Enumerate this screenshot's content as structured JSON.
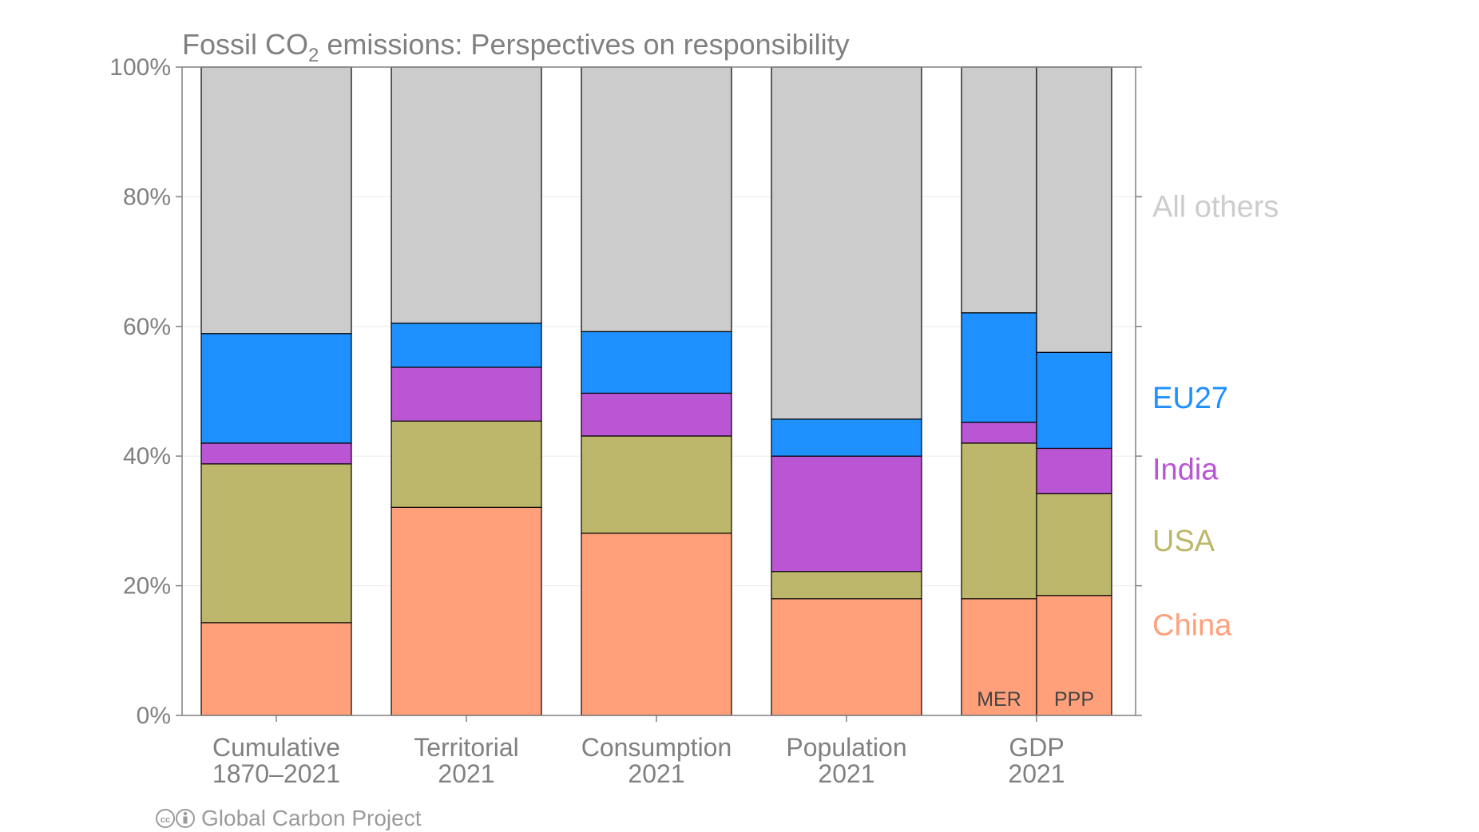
{
  "chart_data": {
    "type": "bar",
    "stacked": true,
    "title_main": "Fossil CO",
    "title_sub": "2",
    "title_rest": " emissions: Perspectives on responsibility",
    "ylim": [
      0,
      100
    ],
    "yticks": [
      0,
      20,
      40,
      60,
      80,
      100
    ],
    "ytick_labels": [
      "0%",
      "20%",
      "40%",
      "60%",
      "80%",
      "100%"
    ],
    "grid": true,
    "legend_placement": "right",
    "series": [
      {
        "name": "China",
        "color": "#FFA07A"
      },
      {
        "name": "USA",
        "color": "#BDB76B"
      },
      {
        "name": "India",
        "color": "#BA55D3"
      },
      {
        "name": "EU27",
        "color": "#1E90FF"
      },
      {
        "name": "All others",
        "color": "#CCCCCC"
      }
    ],
    "groups": [
      {
        "label_line1": "Cumulative",
        "label_line2": "1870–2021",
        "bars": [
          {
            "sublabel": "",
            "values": [
              14.3,
              24.5,
              3.2,
              16.9,
              41.1
            ]
          }
        ]
      },
      {
        "label_line1": "Territorial",
        "label_line2": "2021",
        "bars": [
          {
            "sublabel": "",
            "values": [
              32.1,
              13.3,
              8.3,
              6.8,
              39.5
            ]
          }
        ]
      },
      {
        "label_line1": "Consumption",
        "label_line2": "2021",
        "bars": [
          {
            "sublabel": "",
            "values": [
              28.1,
              15.0,
              6.6,
              9.5,
              40.8
            ]
          }
        ]
      },
      {
        "label_line1": "Population",
        "label_line2": "2021",
        "bars": [
          {
            "sublabel": "",
            "values": [
              18.0,
              4.2,
              17.8,
              5.7,
              54.3
            ]
          }
        ]
      },
      {
        "label_line1": "GDP",
        "label_line2": "2021",
        "bars": [
          {
            "sublabel": "MER",
            "values": [
              18.0,
              24.0,
              3.2,
              16.9,
              37.9
            ]
          },
          {
            "sublabel": "PPP",
            "values": [
              18.5,
              15.7,
              7.0,
              14.8,
              44.0
            ]
          }
        ]
      }
    ],
    "legend_label_positions": [
      14,
      27,
      38,
      49,
      78.5
    ]
  },
  "credit": {
    "cc_icon": "creative-commons-icon",
    "attribution_icon": "attribution-icon",
    "text": "Global Carbon Project"
  }
}
